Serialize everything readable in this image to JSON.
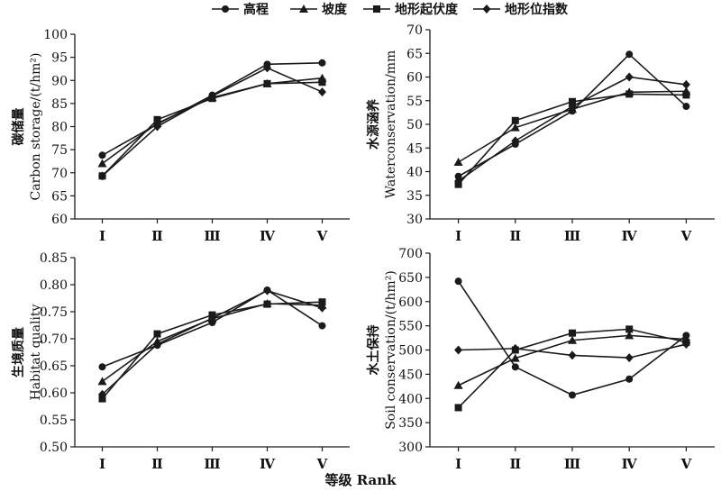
{
  "figure": {
    "xlabel": "等级 Rank",
    "legend": [
      {
        "label": "高程",
        "marker": "circle"
      },
      {
        "label": "坡度",
        "marker": "triangle"
      },
      {
        "label": "地形起伏度",
        "marker": "square"
      },
      {
        "label": "地形位指数",
        "marker": "diamond"
      }
    ],
    "line_color": "#1a1a1a"
  },
  "chart_data": [
    {
      "type": "line",
      "ylabel_cn": "碳储量",
      "ylabel_en": "Carbon storage/(t/hm²)",
      "ylim": [
        60,
        100
      ],
      "yticks": [
        "60",
        "65",
        "70",
        "75",
        "80",
        "85",
        "90",
        "95",
        "100"
      ],
      "categories": [
        "Ⅰ",
        "Ⅱ",
        "Ⅲ",
        "Ⅳ",
        "Ⅴ"
      ],
      "series": [
        {
          "name": "高程",
          "values": [
            73.8,
            80.5,
            86.8,
            93.5,
            93.8
          ]
        },
        {
          "name": "坡度",
          "values": [
            72.0,
            80.7,
            86.3,
            89.3,
            90.5
          ]
        },
        {
          "name": "地形起伏度",
          "values": [
            69.3,
            81.5,
            86.1,
            89.3,
            89.6
          ]
        },
        {
          "name": "地形位指数",
          "values": [
            69.3,
            80.0,
            86.6,
            92.7,
            87.5
          ]
        }
      ]
    },
    {
      "type": "line",
      "ylabel_cn": "水源涵养",
      "ylabel_en": "Waterconservation/mm",
      "ylim": [
        30,
        70
      ],
      "yticks": [
        "30",
        "35",
        "40",
        "45",
        "50",
        "55",
        "60",
        "65",
        "70"
      ],
      "categories": [
        "Ⅰ",
        "Ⅱ",
        "Ⅲ",
        "Ⅳ",
        "Ⅴ"
      ],
      "series": [
        {
          "name": "高程",
          "values": [
            39.0,
            45.8,
            52.8,
            64.8,
            53.8
          ]
        },
        {
          "name": "坡度",
          "values": [
            42.0,
            49.3,
            53.2,
            56.8,
            57.0
          ]
        },
        {
          "name": "地形起伏度",
          "values": [
            37.3,
            50.8,
            54.8,
            56.4,
            56.2
          ]
        },
        {
          "name": "地形位指数",
          "values": [
            38.0,
            46.5,
            53.8,
            60.0,
            58.4
          ]
        }
      ]
    },
    {
      "type": "line",
      "ylabel_cn": "生境质量",
      "ylabel_en": "Habitat quality",
      "ylim": [
        0.5,
        0.85
      ],
      "yticks": [
        "0.50",
        "0.55",
        "0.60",
        "0.65",
        "0.70",
        "0.75",
        "0.80",
        "0.85"
      ],
      "categories": [
        "Ⅰ",
        "Ⅱ",
        "Ⅲ",
        "Ⅳ",
        "Ⅴ"
      ],
      "series": [
        {
          "name": "高程",
          "values": [
            0.648,
            0.688,
            0.73,
            0.79,
            0.724
          ]
        },
        {
          "name": "坡度",
          "values": [
            0.621,
            0.695,
            0.737,
            0.765,
            0.762
          ]
        },
        {
          "name": "地形起伏度",
          "values": [
            0.589,
            0.709,
            0.744,
            0.764,
            0.768
          ]
        },
        {
          "name": "地形位指数",
          "values": [
            0.597,
            0.69,
            0.738,
            0.789,
            0.757
          ]
        }
      ]
    },
    {
      "type": "line",
      "ylabel_cn": "水土保持",
      "ylabel_en": "Soil conservation/(t/hm²)",
      "ylim": [
        300,
        700
      ],
      "yticks": [
        "300",
        "350",
        "400",
        "450",
        "500",
        "550",
        "600",
        "650",
        "700"
      ],
      "categories": [
        "Ⅰ",
        "Ⅱ",
        "Ⅲ",
        "Ⅳ",
        "Ⅴ"
      ],
      "series": [
        {
          "name": "高程",
          "values": [
            642,
            465,
            407,
            440,
            530
          ]
        },
        {
          "name": "坡度",
          "values": [
            427,
            483,
            520,
            530,
            522
          ]
        },
        {
          "name": "地形起伏度",
          "values": [
            381,
            500,
            535,
            543,
            516
          ]
        },
        {
          "name": "地形位指数",
          "values": [
            500,
            503,
            489,
            484,
            512
          ]
        }
      ]
    }
  ]
}
